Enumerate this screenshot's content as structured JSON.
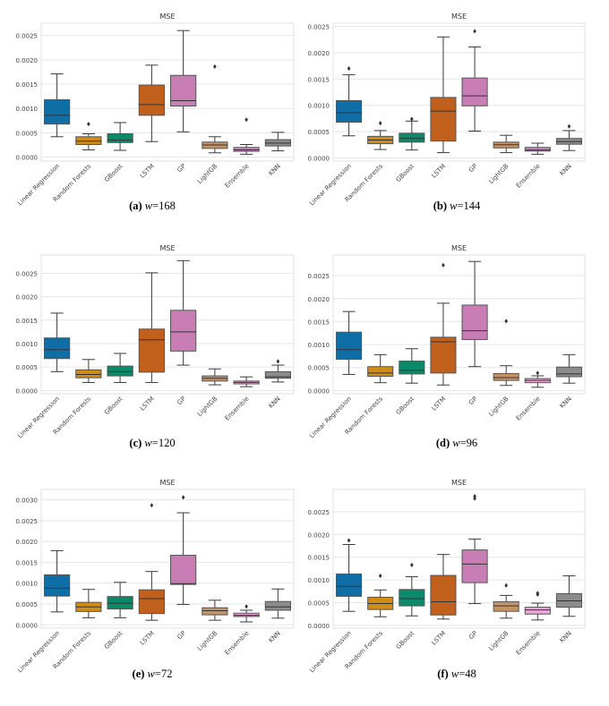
{
  "figure": {
    "captions": [
      {
        "label": "(a)",
        "text": "w=168",
        "var": "w",
        "value": "=168"
      },
      {
        "label": "(b)",
        "text": "w=144",
        "var": "w",
        "value": "=144"
      },
      {
        "label": "(c)",
        "text": "w=120",
        "var": "w",
        "value": "=120"
      },
      {
        "label": "(d)",
        "text": "w=96",
        "var": "w",
        "value": "=96"
      },
      {
        "label": "(e)",
        "text": "w=72",
        "var": "w",
        "value": "=72"
      },
      {
        "label": "(f)",
        "text": "w=48",
        "var": "w",
        "value": "=48"
      }
    ]
  },
  "colors": {
    "Linear Regression": "#0f6ea6",
    "Random Forests": "#d08c14",
    "GBoost": "#0a8a68",
    "LSTM": "#c0601c",
    "GP": "#c87db5",
    "LightGBM": "#c49366",
    "Ensemble_purple": "#c48ac0",
    "Ensemble_pink": "#efa6d8",
    "KNN": "#8c8c8c",
    "grid": "#e6e6e6",
    "frame": "#e0e0e0",
    "tick_text": "#444444"
  },
  "chart_data": [
    {
      "type": "box",
      "title": "MSE",
      "caption": "(a) w=168",
      "categories": [
        "Linear Regression",
        "Random Forests",
        "GBoost",
        "LSTM",
        "GP",
        "LightGB",
        "Ensemble",
        "KNN"
      ],
      "yticks": [
        "0.0000",
        "0.0005",
        "0.0010",
        "0.0015",
        "0.0020",
        "0.0025"
      ],
      "ylim": [
        -8e-05,
        0.00275
      ],
      "ensemble_color": "purple",
      "boxes": [
        {
          "low": 0.00042,
          "q1": 0.00068,
          "median": 0.00086,
          "q3": 0.00118,
          "high": 0.00171,
          "outliers": []
        },
        {
          "low": 0.00015,
          "q1": 0.00026,
          "median": 0.00033,
          "q3": 0.00042,
          "high": 0.00048,
          "outliers": [
            0.00068
          ]
        },
        {
          "low": 0.00014,
          "q1": 0.0003,
          "median": 0.00035,
          "q3": 0.00048,
          "high": 0.00071,
          "outliers": []
        },
        {
          "low": 0.00032,
          "q1": 0.00086,
          "median": 0.00108,
          "q3": 0.00148,
          "high": 0.00189,
          "outliers": []
        },
        {
          "low": 0.00052,
          "q1": 0.00105,
          "median": 0.00116,
          "q3": 0.00168,
          "high": 0.0026,
          "outliers": []
        },
        {
          "low": 9e-05,
          "q1": 0.00018,
          "median": 0.00025,
          "q3": 0.00031,
          "high": 0.00042,
          "outliers": [
            0.00186
          ]
        },
        {
          "low": 6e-05,
          "q1": 0.00012,
          "median": 0.00015,
          "q3": 0.0002,
          "high": 0.00026,
          "outliers": [
            0.00077
          ]
        },
        {
          "low": 0.00013,
          "q1": 0.00023,
          "median": 0.00029,
          "q3": 0.00036,
          "high": 0.00051,
          "outliers": []
        }
      ]
    },
    {
      "type": "box",
      "title": "MSE",
      "caption": "(b) w=144",
      "categories": [
        "Linear Regression",
        "Random Forests",
        "GBoost",
        "LSTM",
        "GP",
        "LightGB",
        "Ensemble",
        "KNN"
      ],
      "yticks": [
        "0.0000",
        "0.0005",
        "0.0010",
        "0.0015",
        "0.0020",
        "0.0025"
      ],
      "ylim": [
        -6e-05,
        0.00256
      ],
      "ensemble_color": "purple",
      "boxes": [
        {
          "low": 0.00042,
          "q1": 0.00068,
          "median": 0.00086,
          "q3": 0.00109,
          "high": 0.00158,
          "outliers": [
            0.0017
          ]
        },
        {
          "low": 0.00016,
          "q1": 0.00027,
          "median": 0.00034,
          "q3": 0.00041,
          "high": 0.00052,
          "outliers": [
            0.00066
          ]
        },
        {
          "low": 0.00015,
          "q1": 0.0003,
          "median": 0.00037,
          "q3": 0.00047,
          "high": 0.0007,
          "outliers": [
            0.00074
          ]
        },
        {
          "low": 0.0001,
          "q1": 0.00032,
          "median": 0.00089,
          "q3": 0.00115,
          "high": 0.0023,
          "outliers": []
        },
        {
          "low": 0.00051,
          "q1": 0.00099,
          "median": 0.00118,
          "q3": 0.00152,
          "high": 0.00211,
          "outliers": [
            0.00241
          ]
        },
        {
          "low": 0.0001,
          "q1": 0.00019,
          "median": 0.00025,
          "q3": 0.0003,
          "high": 0.00043,
          "outliers": []
        },
        {
          "low": 7e-05,
          "q1": 0.00013,
          "median": 0.00015,
          "q3": 0.0002,
          "high": 0.00028,
          "outliers": []
        },
        {
          "low": 0.00014,
          "q1": 0.00026,
          "median": 0.00031,
          "q3": 0.00037,
          "high": 0.00052,
          "outliers": [
            0.0006
          ]
        }
      ]
    },
    {
      "type": "box",
      "title": "MSE",
      "caption": "(c) w=120",
      "categories": [
        "Linear Regression",
        "Random Forests",
        "GBoost",
        "LSTM",
        "GP",
        "LightGB",
        "Ensemble",
        "KNN"
      ],
      "yticks": [
        "0.0000",
        "0.0005",
        "0.0010",
        "0.0015",
        "0.0020",
        "0.0025"
      ],
      "ylim": [
        -7e-05,
        0.00289
      ],
      "ensemble_color": "pink",
      "boxes": [
        {
          "low": 0.0004,
          "q1": 0.00068,
          "median": 0.00087,
          "q3": 0.00112,
          "high": 0.00165,
          "outliers": []
        },
        {
          "low": 0.00017,
          "q1": 0.00027,
          "median": 0.00034,
          "q3": 0.00044,
          "high": 0.00066,
          "outliers": []
        },
        {
          "low": 0.00017,
          "q1": 0.00031,
          "median": 0.0004,
          "q3": 0.00052,
          "high": 0.00079,
          "outliers": []
        },
        {
          "low": 0.00017,
          "q1": 0.00039,
          "median": 0.00108,
          "q3": 0.00131,
          "high": 0.00251,
          "outliers": []
        },
        {
          "low": 0.00054,
          "q1": 0.00084,
          "median": 0.00125,
          "q3": 0.00171,
          "high": 0.00277,
          "outliers": []
        },
        {
          "low": 0.00012,
          "q1": 0.0002,
          "median": 0.00026,
          "q3": 0.00031,
          "high": 0.00046,
          "outliers": []
        },
        {
          "low": 8e-05,
          "q1": 0.00014,
          "median": 0.00017,
          "q3": 0.0002,
          "high": 0.00029,
          "outliers": []
        },
        {
          "low": 0.00018,
          "q1": 0.00026,
          "median": 0.00029,
          "q3": 0.0004,
          "high": 0.00054,
          "outliers": [
            0.00062
          ]
        }
      ]
    },
    {
      "type": "box",
      "title": "MSE",
      "caption": "(d) w=96",
      "categories": [
        "Linear Regression",
        "Random Forests",
        "GBoost",
        "LSTM",
        "GP",
        "LightGB",
        "Ensemble",
        "KNN"
      ],
      "yticks": [
        "0.0000",
        "0.0005",
        "0.0010",
        "0.0015",
        "0.0020",
        "0.0025"
      ],
      "ylim": [
        -7e-05,
        0.00295
      ],
      "ensemble_color": "pink",
      "boxes": [
        {
          "low": 0.00035,
          "q1": 0.00068,
          "median": 0.00089,
          "q3": 0.00127,
          "high": 0.00172,
          "outliers": []
        },
        {
          "low": 0.00017,
          "q1": 0.00031,
          "median": 0.00038,
          "q3": 0.00052,
          "high": 0.00078,
          "outliers": []
        },
        {
          "low": 0.00016,
          "q1": 0.00036,
          "median": 0.00044,
          "q3": 0.00064,
          "high": 0.00091,
          "outliers": []
        },
        {
          "low": 0.00012,
          "q1": 0.00038,
          "median": 0.00106,
          "q3": 0.00116,
          "high": 0.0019,
          "outliers": [
            0.00273
          ]
        },
        {
          "low": 0.00052,
          "q1": 0.00111,
          "median": 0.0013,
          "q3": 0.00186,
          "high": 0.00281,
          "outliers": []
        },
        {
          "low": 0.00011,
          "q1": 0.00022,
          "median": 0.00028,
          "q3": 0.00037,
          "high": 0.00054,
          "outliers": [
            0.00151
          ]
        },
        {
          "low": 7e-05,
          "q1": 0.00017,
          "median": 0.00022,
          "q3": 0.00026,
          "high": 0.00032,
          "outliers": [
            0.00038
          ]
        },
        {
          "low": 0.00016,
          "q1": 0.0003,
          "median": 0.00036,
          "q3": 0.00051,
          "high": 0.00078,
          "outliers": []
        }
      ]
    },
    {
      "type": "box",
      "title": "MSE",
      "caption": "(e) w=72",
      "categories": [
        "Linear Regression",
        "Random Forests",
        "GBoost",
        "LSTM",
        "GP",
        "LightGB",
        "Ensemble",
        "KNN"
      ],
      "yticks": [
        "0.0000",
        "0.0005",
        "0.0010",
        "0.0015",
        "0.0020",
        "0.0025",
        "0.0030"
      ],
      "ylim": [
        -8e-05,
        0.00325
      ],
      "ensemble_color": "pink",
      "boxes": [
        {
          "low": 0.00031,
          "q1": 0.00069,
          "median": 0.00088,
          "q3": 0.0012,
          "high": 0.00178,
          "outliers": []
        },
        {
          "low": 0.00017,
          "q1": 0.00032,
          "median": 0.00043,
          "q3": 0.00054,
          "high": 0.00085,
          "outliers": []
        },
        {
          "low": 0.00017,
          "q1": 0.00038,
          "median": 0.00052,
          "q3": 0.00068,
          "high": 0.00102,
          "outliers": []
        },
        {
          "low": 0.00011,
          "q1": 0.00027,
          "median": 0.00063,
          "q3": 0.00084,
          "high": 0.00128,
          "outliers": [
            0.00287
          ]
        },
        {
          "low": 0.00049,
          "q1": 0.00097,
          "median": 0.00099,
          "q3": 0.00167,
          "high": 0.00269,
          "outliers": [
            0.00306
          ]
        },
        {
          "low": 0.00011,
          "q1": 0.00024,
          "median": 0.00034,
          "q3": 0.00041,
          "high": 0.00059,
          "outliers": []
        },
        {
          "low": 7e-05,
          "q1": 0.0002,
          "median": 0.00023,
          "q3": 0.00028,
          "high": 0.00035,
          "outliers": [
            0.00044
          ]
        },
        {
          "low": 0.00016,
          "q1": 0.00035,
          "median": 0.00043,
          "q3": 0.00056,
          "high": 0.00086,
          "outliers": []
        }
      ]
    },
    {
      "type": "box",
      "title": "MSE",
      "caption": "(f) w=48",
      "categories": [
        "Linear Regression",
        "Random Forests",
        "GBoost",
        "LSTM",
        "GP",
        "LightGB",
        "Ensemble",
        "KNN"
      ],
      "yticks": [
        "0.0000",
        "0.0005",
        "0.0010",
        "0.0015",
        "0.0020",
        "0.0025"
      ],
      "ylim": [
        -6e-05,
        0.00299
      ],
      "ensemble_color": "pink",
      "boxes": [
        {
          "low": 0.00031,
          "q1": 0.00064,
          "median": 0.00086,
          "q3": 0.00113,
          "high": 0.00178,
          "outliers": [
            0.00187
          ]
        },
        {
          "low": 0.00019,
          "q1": 0.00035,
          "median": 0.00048,
          "q3": 0.00062,
          "high": 0.00078,
          "outliers": [
            0.00109
          ]
        },
        {
          "low": 0.00021,
          "q1": 0.00043,
          "median": 0.00059,
          "q3": 0.00079,
          "high": 0.00107,
          "outliers": [
            0.00133
          ]
        },
        {
          "low": 0.00014,
          "q1": 0.00023,
          "median": 0.00052,
          "q3": 0.0011,
          "high": 0.00156,
          "outliers": []
        },
        {
          "low": 0.00048,
          "q1": 0.00094,
          "median": 0.00135,
          "q3": 0.00166,
          "high": 0.0019,
          "outliers": [
            0.00279,
            0.00284
          ]
        },
        {
          "low": 0.00016,
          "q1": 0.00031,
          "median": 0.00043,
          "q3": 0.00052,
          "high": 0.00066,
          "outliers": [
            0.00088
          ]
        },
        {
          "low": 0.00012,
          "q1": 0.00025,
          "median": 0.00034,
          "q3": 0.0004,
          "high": 0.00049,
          "outliers": [
            0.00068,
            0.00071
          ]
        },
        {
          "low": 0.0002,
          "q1": 0.0004,
          "median": 0.00054,
          "q3": 0.0007,
          "high": 0.00109,
          "outliers": []
        }
      ]
    }
  ]
}
